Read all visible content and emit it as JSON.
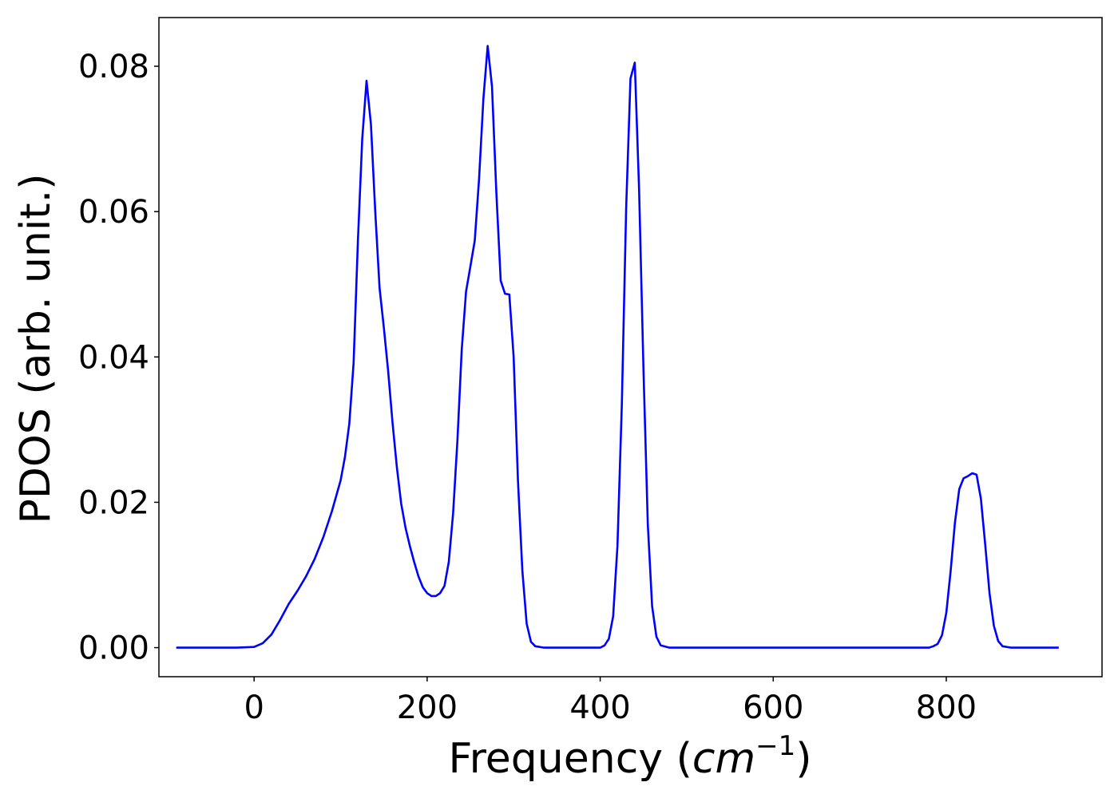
{
  "chart_data": {
    "type": "line",
    "title": "",
    "xlabel_text": "Frequency (",
    "xlabel_unit": "cm",
    "xlabel_exponent": "−1",
    "xlabel_close": ")",
    "ylabel": "PDOS (arb. unit.)",
    "xlim": [
      -110,
      980
    ],
    "ylim": [
      -0.004,
      0.0867
    ],
    "xticks": [
      0,
      200,
      400,
      600,
      800
    ],
    "xtick_labels": [
      "0",
      "200",
      "400",
      "600",
      "800"
    ],
    "yticks": [
      0.0,
      0.02,
      0.04,
      0.06,
      0.08
    ],
    "ytick_labels": [
      "0.00",
      "0.02",
      "0.04",
      "0.06",
      "0.08"
    ],
    "grid": false,
    "series": [
      {
        "color": "#0000ff",
        "points": [
          [
            -90,
            0.0
          ],
          [
            -20,
            0.0
          ],
          [
            0,
            0.0001
          ],
          [
            10,
            0.0006
          ],
          [
            20,
            0.0018
          ],
          [
            30,
            0.0038
          ],
          [
            40,
            0.006
          ],
          [
            50,
            0.0078
          ],
          [
            60,
            0.0098
          ],
          [
            70,
            0.0122
          ],
          [
            80,
            0.0152
          ],
          [
            90,
            0.0188
          ],
          [
            100,
            0.023
          ],
          [
            105,
            0.0262
          ],
          [
            110,
            0.0308
          ],
          [
            115,
            0.0392
          ],
          [
            120,
            0.056
          ],
          [
            125,
            0.07
          ],
          [
            130,
            0.078
          ],
          [
            135,
            0.072
          ],
          [
            140,
            0.06
          ],
          [
            145,
            0.0495
          ],
          [
            150,
            0.044
          ],
          [
            155,
            0.038
          ],
          [
            160,
            0.031
          ],
          [
            165,
            0.0248
          ],
          [
            170,
            0.0198
          ],
          [
            175,
            0.0165
          ],
          [
            180,
            0.014
          ],
          [
            185,
            0.0118
          ],
          [
            190,
            0.0098
          ],
          [
            195,
            0.0083
          ],
          [
            200,
            0.0075
          ],
          [
            205,
            0.0071
          ],
          [
            210,
            0.0071
          ],
          [
            215,
            0.0075
          ],
          [
            220,
            0.0085
          ],
          [
            225,
            0.0118
          ],
          [
            230,
            0.0185
          ],
          [
            235,
            0.0285
          ],
          [
            240,
            0.041
          ],
          [
            245,
            0.049
          ],
          [
            250,
            0.0525
          ],
          [
            255,
            0.056
          ],
          [
            260,
            0.0645
          ],
          [
            265,
            0.0755
          ],
          [
            270,
            0.0828
          ],
          [
            275,
            0.0772
          ],
          [
            280,
            0.0625
          ],
          [
            285,
            0.0505
          ],
          [
            290,
            0.0487
          ],
          [
            295,
            0.0486
          ],
          [
            300,
            0.04
          ],
          [
            305,
            0.023
          ],
          [
            310,
            0.0106
          ],
          [
            315,
            0.0033
          ],
          [
            320,
            0.0008
          ],
          [
            325,
            0.0002
          ],
          [
            335,
            0.0
          ],
          [
            400,
            0.0
          ],
          [
            405,
            0.0003
          ],
          [
            410,
            0.0012
          ],
          [
            415,
            0.0043
          ],
          [
            420,
            0.014
          ],
          [
            425,
            0.0335
          ],
          [
            430,
            0.0605
          ],
          [
            435,
            0.0783
          ],
          [
            440,
            0.0805
          ],
          [
            445,
            0.063
          ],
          [
            450,
            0.0382
          ],
          [
            455,
            0.017
          ],
          [
            460,
            0.0057
          ],
          [
            465,
            0.0015
          ],
          [
            470,
            0.0003
          ],
          [
            480,
            0.0
          ],
          [
            780,
            0.0
          ],
          [
            785,
            0.0002
          ],
          [
            790,
            0.0005
          ],
          [
            795,
            0.0017
          ],
          [
            800,
            0.0048
          ],
          [
            805,
            0.0105
          ],
          [
            810,
            0.0172
          ],
          [
            815,
            0.0218
          ],
          [
            820,
            0.0233
          ],
          [
            825,
            0.0236
          ],
          [
            830,
            0.024
          ],
          [
            835,
            0.0238
          ],
          [
            840,
            0.0205
          ],
          [
            845,
            0.0142
          ],
          [
            850,
            0.0075
          ],
          [
            855,
            0.003
          ],
          [
            860,
            0.0009
          ],
          [
            865,
            0.0002
          ],
          [
            875,
            0.0
          ],
          [
            930,
            0.0
          ]
        ]
      }
    ]
  }
}
